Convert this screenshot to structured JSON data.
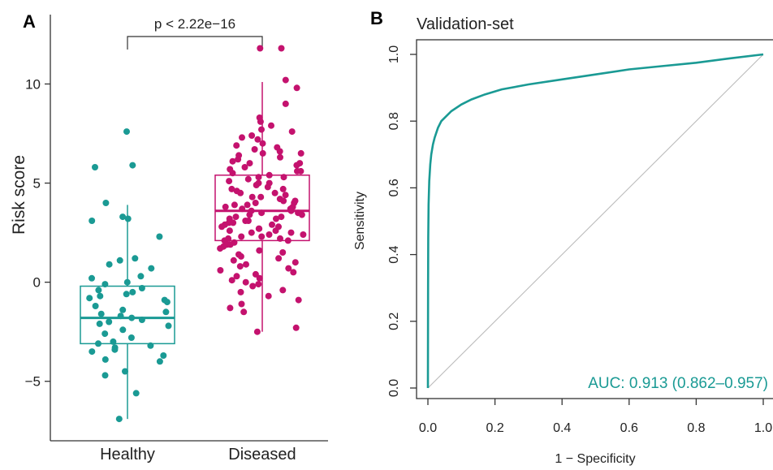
{
  "chart_data": [
    {
      "type": "box-strip",
      "panel": "A",
      "ylabel": "Risk score",
      "ylim": [
        -8,
        13.5
      ],
      "yticks": [
        -5,
        0,
        5,
        10
      ],
      "annotation": "p < 2.22e−16",
      "groups": [
        {
          "name": "Healthy",
          "color": "#1a9a94",
          "box": {
            "q1": -3.1,
            "median": -1.8,
            "q3": -0.2,
            "whisker_low": -6.9,
            "whisker_high": 3.9
          },
          "points": [
            7.6,
            5.9,
            5.8,
            4.0,
            3.3,
            3.2,
            3.1,
            2.3,
            1.2,
            1.1,
            0.9,
            0.7,
            0.3,
            0.2,
            0.0,
            -0.1,
            -0.3,
            -0.4,
            -0.5,
            -0.6,
            -0.7,
            -0.8,
            -0.9,
            -1.0,
            -1.2,
            -1.4,
            -1.5,
            -1.6,
            -1.7,
            -1.8,
            -1.9,
            -2.0,
            -2.1,
            -2.2,
            -2.4,
            -2.6,
            -2.8,
            -3.0,
            -3.1,
            -3.2,
            -3.3,
            -3.4,
            -3.5,
            -3.7,
            -3.9,
            -4.0,
            -4.5,
            -4.7,
            -5.6,
            -6.9
          ]
        },
        {
          "name": "Diseased",
          "color": "#c4126e",
          "box": {
            "q1": 2.1,
            "median": 3.6,
            "q3": 5.4,
            "whisker_low": -2.5,
            "whisker_high": 10.1
          },
          "points": [
            11.8,
            11.8,
            10.2,
            9.8,
            9.0,
            8.3,
            8.1,
            7.9,
            7.7,
            7.6,
            7.4,
            7.3,
            7.2,
            7.0,
            6.9,
            6.8,
            6.7,
            6.6,
            6.5,
            6.5,
            6.4,
            6.3,
            6.2,
            6.1,
            6.0,
            6.0,
            5.9,
            5.8,
            5.7,
            5.6,
            5.6,
            5.5,
            5.4,
            5.3,
            5.3,
            5.2,
            5.1,
            5.0,
            5.0,
            4.9,
            4.8,
            4.7,
            4.7,
            4.6,
            4.5,
            4.5,
            4.4,
            4.3,
            4.3,
            4.2,
            4.1,
            4.1,
            4.0,
            4.0,
            3.9,
            3.9,
            3.8,
            3.8,
            3.7,
            3.7,
            3.6,
            3.6,
            3.5,
            3.5,
            3.4,
            3.4,
            3.3,
            3.3,
            3.2,
            3.2,
            3.1,
            3.1,
            3.0,
            3.0,
            2.9,
            2.9,
            2.8,
            2.8,
            2.7,
            2.7,
            2.6,
            2.6,
            2.5,
            2.5,
            2.4,
            2.4,
            2.3,
            2.3,
            2.2,
            2.2,
            2.1,
            2.1,
            2.0,
            1.9,
            1.9,
            1.8,
            1.7,
            1.6,
            1.5,
            1.4,
            1.3,
            1.2,
            1.1,
            1.0,
            0.9,
            0.8,
            0.7,
            0.6,
            0.5,
            0.4,
            0.3,
            0.2,
            0.1,
            0.0,
            -0.1,
            -0.2,
            -0.4,
            -0.5,
            -0.7,
            -0.9,
            -1.1,
            -1.3,
            -1.5,
            -2.3,
            -2.5
          ]
        }
      ]
    },
    {
      "type": "line",
      "panel": "B",
      "title": "Validation-set",
      "xlabel": "1 − Specificity",
      "ylabel": "Sensitivity",
      "xlim": [
        0,
        1
      ],
      "ylim": [
        0,
        1
      ],
      "xticks": [
        "0.0",
        "0.2",
        "0.4",
        "0.6",
        "0.8",
        "1.0"
      ],
      "yticks": [
        "0.0",
        "0.2",
        "0.4",
        "0.6",
        "0.8",
        "1.0"
      ],
      "series": [
        {
          "color": "#1a9a94",
          "x": [
            0,
            0.0005,
            0.001,
            0.002,
            0.004,
            0.007,
            0.01,
            0.015,
            0.02,
            0.03,
            0.04,
            0.05,
            0.07,
            0.1,
            0.13,
            0.17,
            0.22,
            0.3,
            0.4,
            0.5,
            0.6,
            0.7,
            0.8,
            0.9,
            1.0
          ],
          "y": [
            0,
            0.3,
            0.45,
            0.55,
            0.62,
            0.67,
            0.7,
            0.73,
            0.75,
            0.78,
            0.8,
            0.81,
            0.83,
            0.85,
            0.865,
            0.88,
            0.895,
            0.91,
            0.925,
            0.94,
            0.955,
            0.965,
            0.975,
            0.988,
            1.0
          ]
        }
      ],
      "reference_line": {
        "x": [
          0,
          1
        ],
        "y": [
          0,
          1
        ],
        "color": "#bbbbbb"
      },
      "annotation": "AUC: 0.913 (0.862–0.957)"
    }
  ]
}
